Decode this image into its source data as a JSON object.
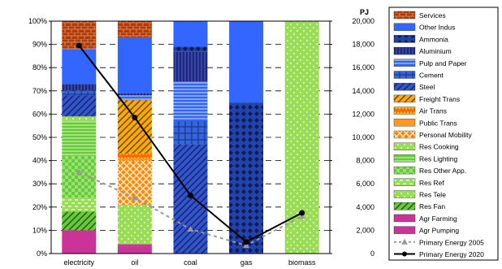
{
  "chart_data": {
    "type": "bar",
    "stacked": true,
    "normalized_percent": true,
    "categories": [
      "electricity",
      "oil",
      "coal",
      "gas",
      "biomass"
    ],
    "y_left": {
      "ticks": [
        "0%",
        "10%",
        "20%",
        "30%",
        "40%",
        "50%",
        "60%",
        "70%",
        "80%",
        "90%",
        "100%"
      ],
      "ylim": [
        0,
        100
      ]
    },
    "y_right": {
      "unit": "PJ",
      "ticks": [
        "0",
        "2,000",
        "4,000",
        "6,000",
        "8,000",
        "10,000",
        "12,000",
        "14,000",
        "16,000",
        "18,000",
        "20,000"
      ],
      "ylim": [
        0,
        20000
      ]
    },
    "grid": "horizontal dashed",
    "legend_placement": "right",
    "series": [
      {
        "name": "Agr Pumping",
        "color": "#cc3399",
        "pattern": "solid",
        "values": [
          0,
          3,
          0,
          0,
          0
        ]
      },
      {
        "name": "Agr Farming",
        "color": "#cc3399",
        "pattern": "solid",
        "values": [
          10,
          1,
          0,
          0,
          0
        ]
      },
      {
        "name": "Res Fan",
        "color": "#66cc33",
        "pattern": "diag",
        "values": [
          8,
          0,
          0,
          0,
          0
        ]
      },
      {
        "name": "Res Tele",
        "color": "#99dd55",
        "pattern": "dots",
        "values": [
          0,
          17,
          0,
          0,
          100
        ]
      },
      {
        "name": "Res Ref",
        "color": "#99dd55",
        "pattern": "dash",
        "values": [
          6,
          0,
          0,
          0,
          0
        ]
      },
      {
        "name": "Res Other App.",
        "color": "#66cc33",
        "pattern": "check",
        "values": [
          18,
          0,
          0,
          0,
          0
        ]
      },
      {
        "name": "Res Lighting",
        "color": "#66cc33",
        "pattern": "hlines",
        "values": [
          15,
          0,
          0,
          0,
          0
        ]
      },
      {
        "name": "Res Cooking",
        "color": "#99dd55",
        "pattern": "dots",
        "values": [
          2,
          0,
          0,
          0,
          0
        ]
      },
      {
        "name": "Personal Mobility",
        "color": "#ff8800",
        "pattern": "weave",
        "values": [
          0,
          19,
          0,
          0,
          0
        ]
      },
      {
        "name": "Public Trans",
        "color": "#ff9922",
        "pattern": "solid",
        "values": [
          0,
          1,
          0,
          0,
          0
        ]
      },
      {
        "name": "Air Trans",
        "color": "#ff6600",
        "pattern": "zigzag",
        "values": [
          0,
          2,
          0,
          0,
          0
        ]
      },
      {
        "name": "Freight Trans",
        "color": "#ffaa00",
        "pattern": "diag",
        "values": [
          0,
          23,
          0,
          0,
          0
        ]
      },
      {
        "name": "Steel",
        "color": "#3355cc",
        "pattern": "diag",
        "values": [
          9,
          0,
          47,
          0,
          0
        ]
      },
      {
        "name": "Cement",
        "color": "#3366dd",
        "pattern": "grid",
        "values": [
          2,
          0,
          10,
          0,
          0
        ]
      },
      {
        "name": "Pulp and Paper",
        "color": "#3366ee",
        "pattern": "hlines",
        "values": [
          0,
          2,
          17,
          0,
          0
        ]
      },
      {
        "name": "Aluminium",
        "color": "#3344aa",
        "pattern": "vlines",
        "values": [
          3,
          1,
          13,
          0,
          0
        ]
      },
      {
        "name": "Ammonia",
        "color": "#2244aa",
        "pattern": "diamond",
        "values": [
          0,
          0,
          2,
          65,
          0
        ]
      },
      {
        "name": "Other Indus",
        "color": "#3366ff",
        "pattern": "solid",
        "values": [
          15,
          24,
          11,
          35,
          0
        ]
      },
      {
        "name": "Services",
        "color": "#b03a0a",
        "pattern": "brick",
        "values": [
          12,
          7,
          0,
          0,
          0
        ]
      }
    ],
    "lines": [
      {
        "name": "Primary Energy 2005",
        "axis": "right",
        "style": "dashed",
        "marker": "triangle",
        "color": "#999999",
        "values": [
          7000,
          4800,
          2100,
          700,
          3200
        ]
      },
      {
        "name": "Primary Energy 2020",
        "axis": "right",
        "style": "solid",
        "marker": "circle",
        "color": "#000000",
        "values": [
          17900,
          11700,
          5000,
          1000,
          3500
        ]
      }
    ],
    "legend": [
      "Services",
      "Other Indus",
      "Ammonia",
      "Aluminium",
      "Pulp and Paper",
      "Cement",
      "Steel",
      "Freight Trans",
      "Air Trans",
      "Public Trans",
      "Personal Mobility",
      "Res Cooking",
      "Res Lighting",
      "Res Other App.",
      "Res Ref",
      "Res Tele",
      "Res Fan",
      "Agr Farming",
      "Agr Pumping",
      "Primary Energy 2005",
      "Primary Energy 2020"
    ]
  }
}
